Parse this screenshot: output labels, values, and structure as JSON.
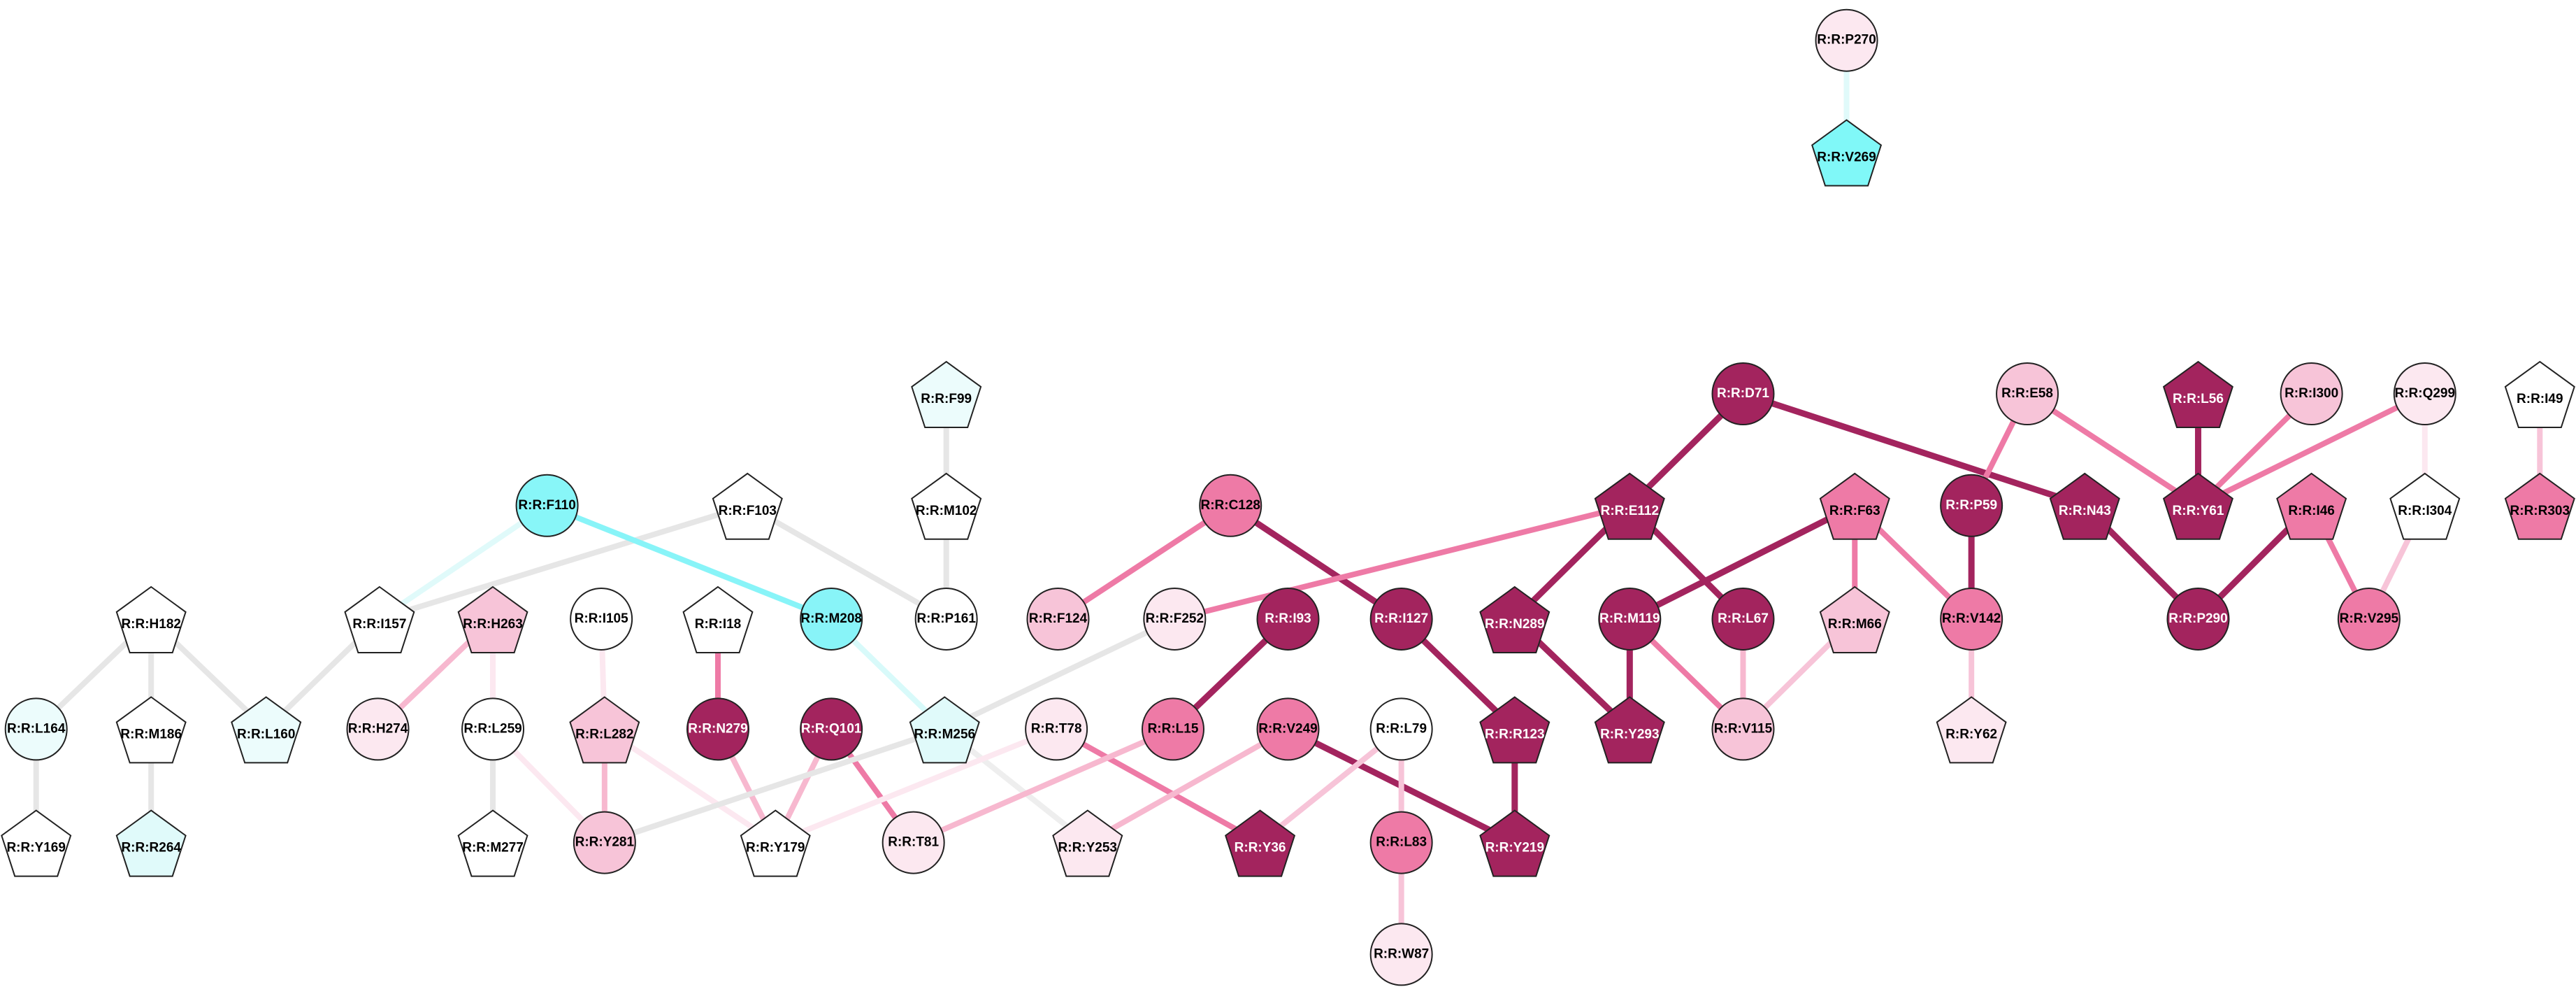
{
  "nodes": [
    {
      "label": "R:R:P270",
      "shape": "circle",
      "fill": "#fce8f0"
    },
    {
      "label": "R:R:V269",
      "shape": "pentagon",
      "fill": "#80f8f8"
    },
    {
      "label": "R:R:F99",
      "shape": "pentagon",
      "fill": "#ecfcfc"
    },
    {
      "label": "R:R:M102",
      "shape": "pentagon",
      "fill": "#ffffff"
    },
    {
      "label": "R:R:P161",
      "shape": "circle",
      "fill": "#ffffff"
    },
    {
      "label": "R:R:F110",
      "shape": "circle",
      "fill": "#88f6f8"
    },
    {
      "label": "R:R:F103",
      "shape": "pentagon",
      "fill": "#ffffff"
    },
    {
      "label": "R:R:I157",
      "shape": "pentagon",
      "fill": "#ffffff"
    },
    {
      "label": "R:R:H182",
      "shape": "pentagon",
      "fill": "#ffffff"
    },
    {
      "label": "R:R:H263",
      "shape": "pentagon",
      "fill": "#f7c4d8"
    },
    {
      "label": "R:R:I105",
      "shape": "circle",
      "fill": "#ffffff"
    },
    {
      "label": "R:R:I18",
      "shape": "pentagon",
      "fill": "#ffffff"
    },
    {
      "label": "R:R:M208",
      "shape": "circle",
      "fill": "#88f4f8"
    },
    {
      "label": "R:R:L164",
      "shape": "circle",
      "fill": "#ecfcfc"
    },
    {
      "label": "R:R:M186",
      "shape": "pentagon",
      "fill": "#ffffff"
    },
    {
      "label": "R:R:L160",
      "shape": "pentagon",
      "fill": "#ecfcfc"
    },
    {
      "label": "R:R:H274",
      "shape": "circle",
      "fill": "#fce8f0"
    },
    {
      "label": "R:R:L259",
      "shape": "circle",
      "fill": "#ffffff"
    },
    {
      "label": "R:R:L282",
      "shape": "pentagon",
      "fill": "#f7c4d8"
    },
    {
      "label": "R:R:N279",
      "shape": "circle",
      "fill": "#a3245e"
    },
    {
      "label": "R:R:Q101",
      "shape": "circle",
      "fill": "#a3245e"
    },
    {
      "label": "R:R:M256",
      "shape": "pentagon",
      "fill": "#e0fafa"
    },
    {
      "label": "R:R:Y169",
      "shape": "pentagon",
      "fill": "#ffffff"
    },
    {
      "label": "R:R:R264",
      "shape": "pentagon",
      "fill": "#e0fafa"
    },
    {
      "label": "R:R:M277",
      "shape": "pentagon",
      "fill": "#ffffff"
    },
    {
      "label": "R:R:Y281",
      "shape": "circle",
      "fill": "#f7c4d8"
    },
    {
      "label": "R:R:Y179",
      "shape": "pentagon",
      "fill": "#ffffff"
    },
    {
      "label": "R:R:T81",
      "shape": "circle",
      "fill": "#fce8f0"
    },
    {
      "label": "R:R:T78",
      "shape": "circle",
      "fill": "#fce8f0"
    },
    {
      "label": "R:R:Y253",
      "shape": "pentagon",
      "fill": "#fce8f0"
    },
    {
      "label": "R:R:F124",
      "shape": "circle",
      "fill": "#f7c4d8"
    },
    {
      "label": "R:R:F252",
      "shape": "circle",
      "fill": "#fce8f0"
    },
    {
      "label": "R:R:C128",
      "shape": "circle",
      "fill": "#ee7aa6"
    },
    {
      "label": "R:R:I93",
      "shape": "circle",
      "fill": "#a3245e"
    },
    {
      "label": "R:R:L15",
      "shape": "circle",
      "fill": "#ee7aa6"
    },
    {
      "label": "R:R:V249",
      "shape": "circle",
      "fill": "#ee7aa6"
    },
    {
      "label": "R:R:Y36",
      "shape": "pentagon",
      "fill": "#a3245e"
    },
    {
      "label": "R:R:I127",
      "shape": "circle",
      "fill": "#a3245e"
    },
    {
      "label": "R:R:L79",
      "shape": "circle",
      "fill": "#ffffff"
    },
    {
      "label": "R:R:L83",
      "shape": "circle",
      "fill": "#ee7aa6"
    },
    {
      "label": "R:R:W87",
      "shape": "circle",
      "fill": "#fce8f0"
    },
    {
      "label": "R:R:R123",
      "shape": "pentagon",
      "fill": "#a3245e"
    },
    {
      "label": "R:R:Y219",
      "shape": "pentagon",
      "fill": "#a3245e"
    },
    {
      "label": "R:R:D71",
      "shape": "circle",
      "fill": "#a3245e"
    },
    {
      "label": "R:R:E112",
      "shape": "pentagon",
      "fill": "#a3245e"
    },
    {
      "label": "R:R:N289",
      "shape": "pentagon",
      "fill": "#a3245e"
    },
    {
      "label": "R:R:M119",
      "shape": "circle",
      "fill": "#a3245e"
    },
    {
      "label": "R:R:L67",
      "shape": "circle",
      "fill": "#a3245e"
    },
    {
      "label": "R:R:Y293",
      "shape": "pentagon",
      "fill": "#a3245e"
    },
    {
      "label": "R:R:V115",
      "shape": "circle",
      "fill": "#f7c4d8"
    },
    {
      "label": "R:R:F63",
      "shape": "pentagon",
      "fill": "#ee7aa6"
    },
    {
      "label": "R:R:M66",
      "shape": "pentagon",
      "fill": "#f7c4d8"
    },
    {
      "label": "R:R:E58",
      "shape": "circle",
      "fill": "#f7c4d8"
    },
    {
      "label": "R:R:P59",
      "shape": "circle",
      "fill": "#a3245e"
    },
    {
      "label": "R:R:V142",
      "shape": "circle",
      "fill": "#ee7aa6"
    },
    {
      "label": "R:R:Y62",
      "shape": "pentagon",
      "fill": "#fce8f0"
    },
    {
      "label": "R:R:N43",
      "shape": "pentagon",
      "fill": "#a3245e"
    },
    {
      "label": "R:R:L56",
      "shape": "pentagon",
      "fill": "#a3245e"
    },
    {
      "label": "R:R:Y61",
      "shape": "pentagon",
      "fill": "#a3245e"
    },
    {
      "label": "R:R:I300",
      "shape": "circle",
      "fill": "#f7c4d8"
    },
    {
      "label": "R:R:Q299",
      "shape": "circle",
      "fill": "#fce8f0"
    },
    {
      "label": "R:R:P290",
      "shape": "circle",
      "fill": "#a3245e"
    },
    {
      "label": "R:R:I46",
      "shape": "pentagon",
      "fill": "#ee7aa6"
    },
    {
      "label": "R:R:I304",
      "shape": "pentagon",
      "fill": "#ffffff"
    },
    {
      "label": "R:R:V295",
      "shape": "circle",
      "fill": "#ee7aa6"
    },
    {
      "label": "R:R:I49",
      "shape": "pentagon",
      "fill": "#ffffff"
    },
    {
      "label": "R:R:R303",
      "shape": "pentagon",
      "fill": "#ee7aa6"
    }
  ],
  "edges": [
    {
      "source": 0,
      "target": 1,
      "color": "#e0fafa"
    },
    {
      "source": 2,
      "target": 3,
      "color": "#e6e6e6"
    },
    {
      "source": 3,
      "target": 4,
      "color": "#e6e6e6"
    },
    {
      "source": 6,
      "target": 4,
      "color": "#e6e6e6"
    },
    {
      "source": 6,
      "target": 7,
      "color": "#e6e6e6"
    },
    {
      "source": 5,
      "target": 7,
      "color": "#e0fafa"
    },
    {
      "source": 5,
      "target": 12,
      "color": "#88f4f8"
    },
    {
      "source": 12,
      "target": 21,
      "color": "#d8fafa"
    },
    {
      "source": 7,
      "target": 15,
      "color": "#e6e6e6"
    },
    {
      "source": 8,
      "target": 15,
      "color": "#e6e6e6"
    },
    {
      "source": 8,
      "target": 13,
      "color": "#e6e6e6"
    },
    {
      "source": 8,
      "target": 14,
      "color": "#e6e6e6"
    },
    {
      "source": 14,
      "target": 23,
      "color": "#e6e6e6"
    },
    {
      "source": 13,
      "target": 22,
      "color": "#e6e6e6"
    },
    {
      "source": 9,
      "target": 16,
      "color": "#f7b8cf"
    },
    {
      "source": 9,
      "target": 17,
      "color": "#fce8f0"
    },
    {
      "source": 17,
      "target": 24,
      "color": "#e6e6e6"
    },
    {
      "source": 17,
      "target": 25,
      "color": "#fce8f0"
    },
    {
      "source": 10,
      "target": 18,
      "color": "#fce8f0"
    },
    {
      "source": 18,
      "target": 25,
      "color": "#f7b8cf"
    },
    {
      "source": 18,
      "target": 26,
      "color": "#fce8f0"
    },
    {
      "source": 11,
      "target": 19,
      "color": "#ee7aa6"
    },
    {
      "source": 19,
      "target": 26,
      "color": "#f7b8cf"
    },
    {
      "source": 20,
      "target": 26,
      "color": "#f7b8cf"
    },
    {
      "source": 20,
      "target": 27,
      "color": "#ee7aa6"
    },
    {
      "source": 21,
      "target": 25,
      "color": "#e6e6e6"
    },
    {
      "source": 31,
      "target": 21,
      "color": "#e6e6e6"
    },
    {
      "source": 21,
      "target": 29,
      "color": "#eeeeee"
    },
    {
      "source": 28,
      "target": 26,
      "color": "#fce8f0"
    },
    {
      "source": 28,
      "target": 36,
      "color": "#ee7aa6"
    },
    {
      "source": 34,
      "target": 27,
      "color": "#f7b8cf"
    },
    {
      "source": 33,
      "target": 34,
      "color": "#a3245e"
    },
    {
      "source": 32,
      "target": 30,
      "color": "#ee7aa6"
    },
    {
      "source": 32,
      "target": 37,
      "color": "#a3245e"
    },
    {
      "source": 37,
      "target": 41,
      "color": "#a3245e"
    },
    {
      "source": 41,
      "target": 42,
      "color": "#a3245e"
    },
    {
      "source": 35,
      "target": 42,
      "color": "#a3245e"
    },
    {
      "source": 35,
      "target": 29,
      "color": "#f7b8cf"
    },
    {
      "source": 38,
      "target": 36,
      "color": "#f7c4d8"
    },
    {
      "source": 38,
      "target": 39,
      "color": "#f7c4d8"
    },
    {
      "source": 39,
      "target": 40,
      "color": "#f7c4d8"
    },
    {
      "source": 44,
      "target": 31,
      "color": "#ee7aa6"
    },
    {
      "source": 43,
      "target": 44,
      "color": "#a3245e"
    },
    {
      "source": 43,
      "target": 56,
      "color": "#a3245e"
    },
    {
      "source": 44,
      "target": 45,
      "color": "#a3245e"
    },
    {
      "source": 44,
      "target": 47,
      "color": "#a3245e"
    },
    {
      "source": 45,
      "target": 48,
      "color": "#a3245e"
    },
    {
      "source": 46,
      "target": 48,
      "color": "#a3245e"
    },
    {
      "source": 46,
      "target": 49,
      "color": "#ee7aa6"
    },
    {
      "source": 47,
      "target": 49,
      "color": "#f7b8cf"
    },
    {
      "source": 50,
      "target": 46,
      "color": "#a3245e"
    },
    {
      "source": 50,
      "target": 51,
      "color": "#ee7aa6"
    },
    {
      "source": 50,
      "target": 54,
      "color": "#ee7aa6"
    },
    {
      "source": 51,
      "target": 49,
      "color": "#f7c4d8"
    },
    {
      "source": 52,
      "target": 53,
      "color": "#ee7aa6"
    },
    {
      "source": 52,
      "target": 58,
      "color": "#ee7aa6"
    },
    {
      "source": 53,
      "target": 54,
      "color": "#a3245e"
    },
    {
      "source": 54,
      "target": 55,
      "color": "#f7c4d8"
    },
    {
      "source": 56,
      "target": 61,
      "color": "#a3245e"
    },
    {
      "source": 57,
      "target": 58,
      "color": "#a3245e"
    },
    {
      "source": 59,
      "target": 58,
      "color": "#ee7aa6"
    },
    {
      "source": 60,
      "target": 58,
      "color": "#ee7aa6"
    },
    {
      "source": 60,
      "target": 63,
      "color": "#fce8f0"
    },
    {
      "source": 63,
      "target": 64,
      "color": "#f7c4d8"
    },
    {
      "source": 62,
      "target": 61,
      "color": "#a3245e"
    },
    {
      "source": 62,
      "target": 64,
      "color": "#ee7aa6"
    },
    {
      "source": 65,
      "target": 66,
      "color": "#f7c4d8"
    }
  ]
}
